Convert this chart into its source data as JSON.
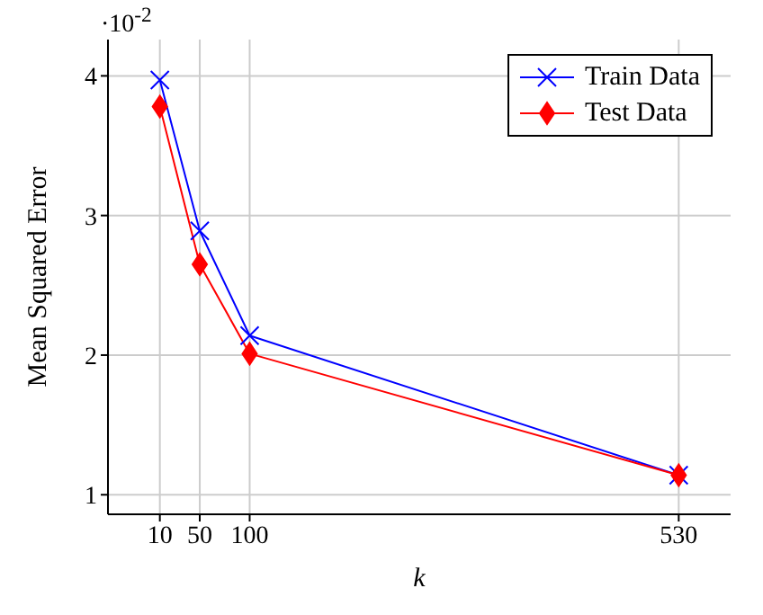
{
  "chart_data": {
    "type": "line",
    "xlabel": "k",
    "ylabel": "Mean Squared Error",
    "annotations": [
      "·10$^{-2}$"
    ],
    "x": [
      10,
      50,
      100,
      530
    ],
    "series": [
      {
        "name": "Train Data",
        "color": "#0000ff",
        "marker": "cross",
        "values": [
          3.97,
          2.89,
          2.14,
          1.14
        ]
      },
      {
        "name": "Test Data",
        "color": "#ff0000",
        "marker": "diamond",
        "values": [
          3.78,
          2.65,
          2.01,
          1.14
        ]
      }
    ],
    "xlim": [
      -42,
      582
    ],
    "ylim": [
      0.86,
      4.26
    ],
    "xticks": [
      10,
      50,
      100,
      530
    ],
    "yticks": [
      1,
      2,
      3,
      4
    ],
    "grid": true,
    "legend": "top right",
    "line_style": "solid"
  }
}
